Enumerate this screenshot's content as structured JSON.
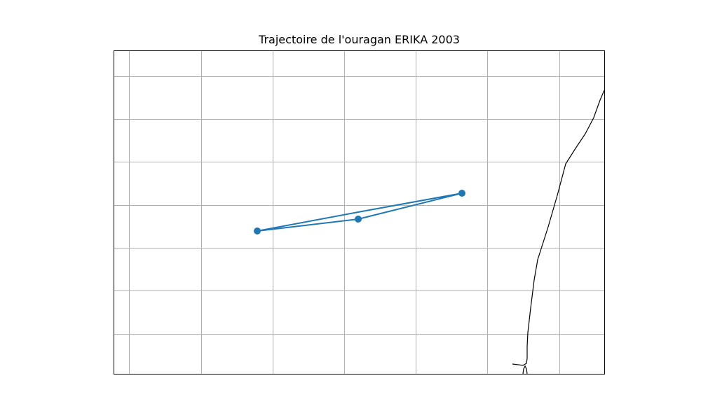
{
  "chart_data": {
    "type": "map",
    "title": "Trajectoire de l'ouragan ERIKA 2003",
    "xlabel": "",
    "ylabel": "",
    "grid": true,
    "legend": "none",
    "axis_tick_labels_shown": false,
    "track": {
      "color": "#1f77b4",
      "marker": "circle",
      "points_in_order": [
        "p1",
        "p2",
        "p3",
        "p2",
        "p1"
      ],
      "distinct_points": 3
    },
    "coastline": {
      "color": "#000000"
    }
  },
  "colors": {
    "track": "#1f77b4",
    "grid": "#b0b0b0",
    "frame": "#000000",
    "coastline": "#000000",
    "background": "#ffffff"
  }
}
